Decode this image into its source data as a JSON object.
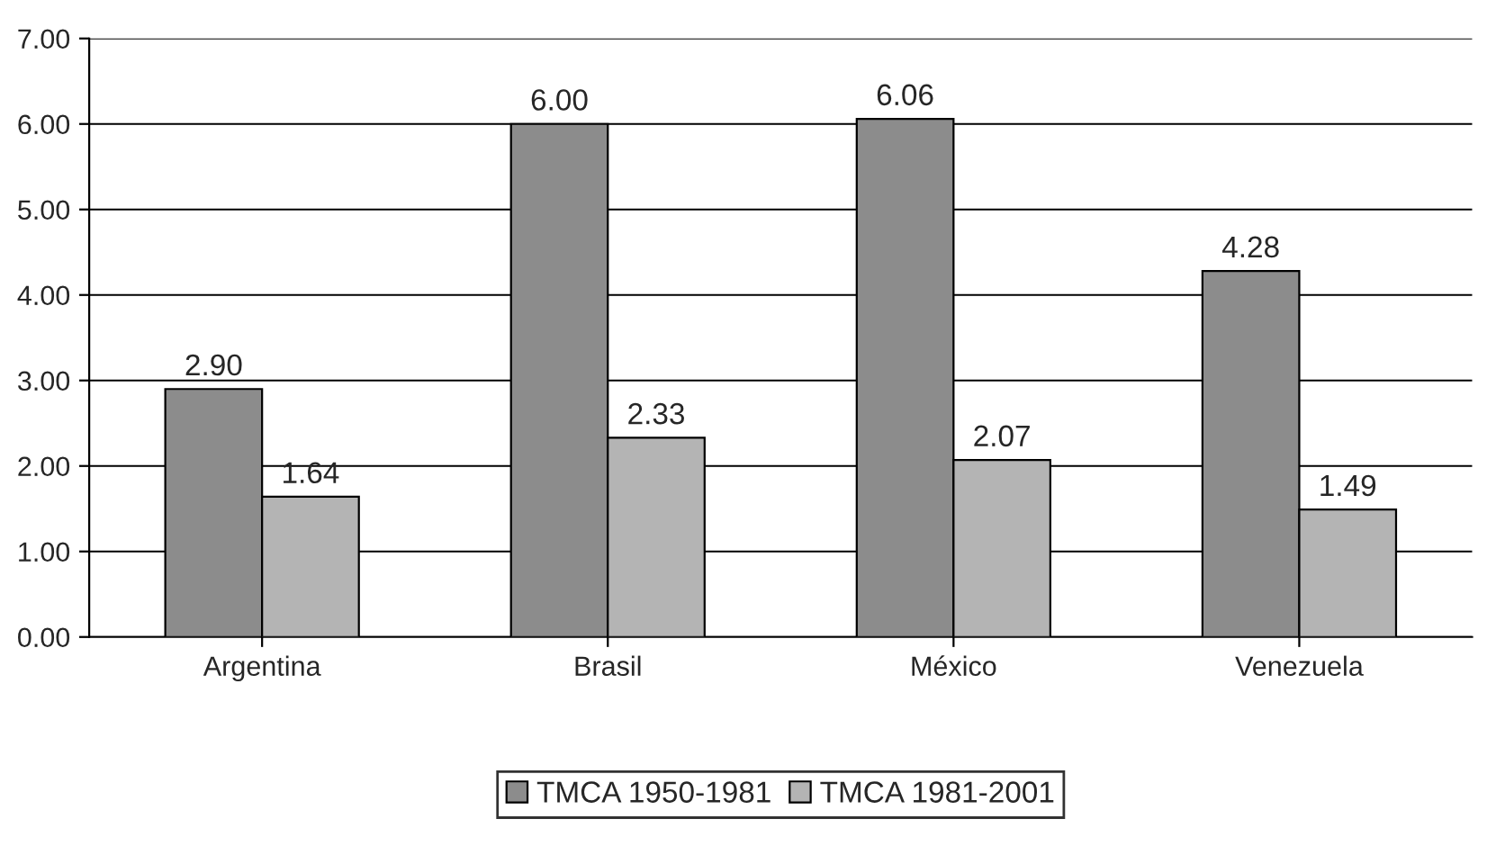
{
  "chart_data": {
    "type": "bar",
    "categories": [
      "Argentina",
      "Brasil",
      "México",
      "Venezuela"
    ],
    "series": [
      {
        "name": "TMCA 1950-1981",
        "color": "#8c8c8c",
        "values": [
          2.9,
          6.0,
          6.06,
          4.28
        ]
      },
      {
        "name": "TMCA 1981-2001",
        "color": "#b4b4b4",
        "values": [
          1.64,
          2.33,
          2.07,
          1.49
        ]
      }
    ],
    "ylim": [
      0,
      7
    ],
    "yticks": [
      {
        "value": 0,
        "label": "0.00"
      },
      {
        "value": 1,
        "label": "1.00"
      },
      {
        "value": 2,
        "label": "2.00"
      },
      {
        "value": 3,
        "label": "3.00"
      },
      {
        "value": 4,
        "label": "4.00"
      },
      {
        "value": 5,
        "label": "5.00"
      },
      {
        "value": 6,
        "label": "6.00"
      },
      {
        "value": 7,
        "label": "7.00"
      }
    ],
    "value_labels": [
      [
        "2.90",
        "6.00",
        "6.06",
        "4.28"
      ],
      [
        "1.64",
        "2.33",
        "2.07",
        "1.49"
      ]
    ],
    "grid": "y",
    "legend": "bottom"
  }
}
